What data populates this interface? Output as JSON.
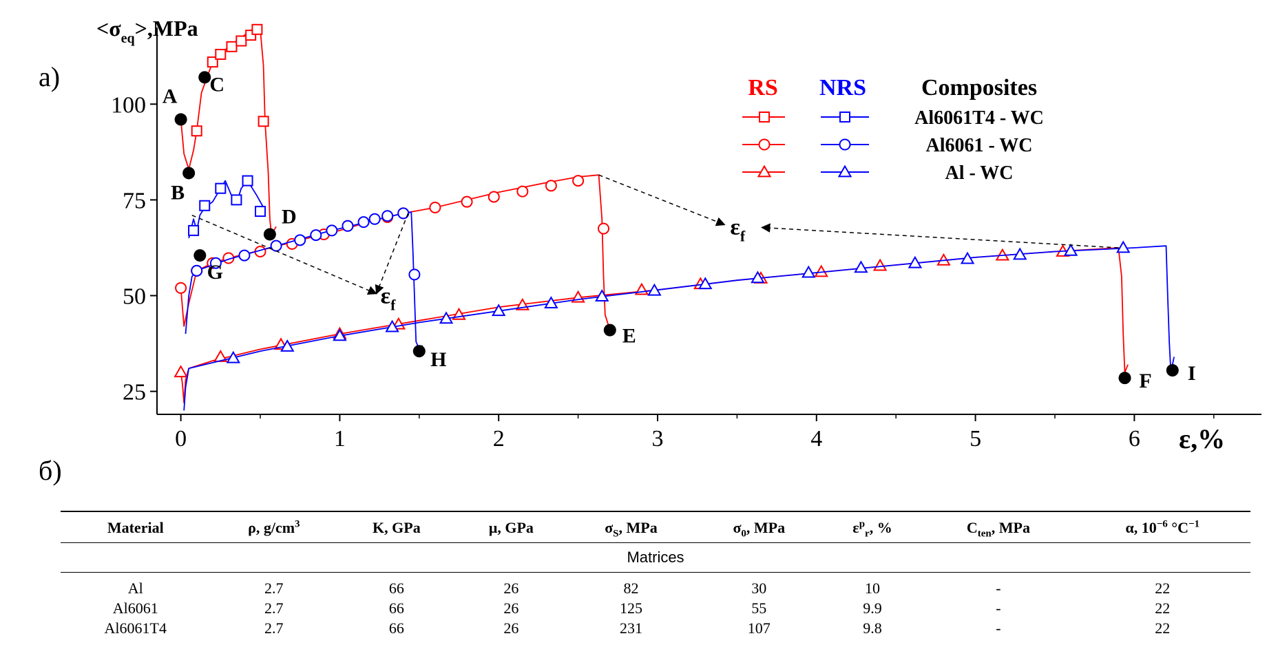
{
  "panel_labels": {
    "a": "а)",
    "b": "б)"
  },
  "chart_data": {
    "type": "line",
    "ylabel_parts": {
      "pre": "<σ",
      "sub": "eq",
      "post": ">,MPa"
    },
    "xlabel": "ε,%",
    "xlim": [
      -0.15,
      6.8
    ],
    "ylim": [
      19,
      120
    ],
    "xticks": [
      0,
      1,
      2,
      3,
      4,
      5,
      6
    ],
    "yticks": [
      25,
      50,
      75,
      100
    ],
    "colors": {
      "RS": "#ff0000",
      "NRS": "#0000ff"
    },
    "legend": {
      "header": {
        "rs": "RS",
        "nrs": "NRS",
        "title": "Composites"
      },
      "entries": [
        {
          "label": "Al6061T4 - WC",
          "marker": "square"
        },
        {
          "label": "Al6061 - WC",
          "marker": "circle"
        },
        {
          "label": "Al - WC",
          "marker": "triangle"
        }
      ]
    },
    "series": [
      {
        "name": "RS",
        "group": "RS",
        "color": "#ff0000",
        "marker": "square",
        "points": [
          [
            0.0,
            96
          ],
          [
            0.02,
            87
          ],
          [
            0.05,
            83
          ],
          [
            0.08,
            88
          ],
          [
            0.1,
            93
          ],
          [
            0.13,
            103
          ],
          [
            0.2,
            111
          ],
          [
            0.25,
            113
          ],
          [
            0.3,
            115
          ],
          [
            0.35,
            116.5
          ],
          [
            0.4,
            118
          ],
          [
            0.45,
            119.5
          ],
          [
            0.5,
            119.5
          ],
          [
            0.52,
            110
          ],
          [
            0.53,
            95.5
          ],
          [
            0.55,
            82
          ],
          [
            0.56,
            70
          ],
          [
            0.57,
            66
          ],
          [
            0.6,
            68
          ]
        ],
        "markers": [
          [
            0.1,
            93
          ],
          [
            0.2,
            111
          ],
          [
            0.25,
            113
          ],
          [
            0.32,
            115
          ],
          [
            0.38,
            116.5
          ],
          [
            0.44,
            118
          ],
          [
            0.48,
            119.5
          ],
          [
            0.52,
            95.5
          ]
        ]
      },
      {
        "name": "RS",
        "group": "RS",
        "color": "#ff0000",
        "marker": "circle",
        "points": [
          [
            0.0,
            52
          ],
          [
            0.02,
            42
          ],
          [
            0.05,
            48
          ],
          [
            0.1,
            56.5
          ],
          [
            0.2,
            58.5
          ],
          [
            0.3,
            59.8
          ],
          [
            0.5,
            61.8
          ],
          [
            0.8,
            65
          ],
          [
            1.0,
            67
          ],
          [
            1.2,
            69.5
          ],
          [
            1.4,
            71.5
          ],
          [
            1.6,
            73
          ],
          [
            2.0,
            77
          ],
          [
            2.3,
            79.5
          ],
          [
            2.5,
            81
          ],
          [
            2.63,
            81.5
          ],
          [
            2.65,
            70
          ],
          [
            2.66,
            55
          ],
          [
            2.67,
            45
          ],
          [
            2.7,
            41
          ],
          [
            2.72,
            42
          ]
        ],
        "markers": [
          [
            0.0,
            52
          ],
          [
            0.1,
            56.5
          ],
          [
            0.2,
            58.5
          ],
          [
            0.3,
            59.8
          ],
          [
            0.5,
            61.5
          ],
          [
            0.7,
            63.5
          ],
          [
            0.9,
            66
          ],
          [
            1.05,
            68.2
          ],
          [
            1.3,
            70.5
          ],
          [
            1.4,
            71.5
          ],
          [
            1.6,
            73
          ],
          [
            1.8,
            74.5
          ],
          [
            1.97,
            75.8
          ],
          [
            2.15,
            77.2
          ],
          [
            2.33,
            78.7
          ],
          [
            2.5,
            80
          ],
          [
            2.66,
            67.5
          ]
        ]
      },
      {
        "name": "RS",
        "group": "RS",
        "color": "#ff0000",
        "marker": "triangle",
        "points": [
          [
            0.0,
            30
          ],
          [
            0.01,
            27
          ],
          [
            0.02,
            22
          ],
          [
            0.03,
            28
          ],
          [
            0.05,
            31
          ],
          [
            0.2,
            33
          ],
          [
            0.5,
            36
          ],
          [
            1.0,
            40
          ],
          [
            1.5,
            43.5
          ],
          [
            2.0,
            47
          ],
          [
            2.5,
            49.5
          ],
          [
            3.0,
            51.5
          ],
          [
            3.5,
            54
          ],
          [
            4.0,
            56
          ],
          [
            4.5,
            58
          ],
          [
            5.0,
            60
          ],
          [
            5.5,
            61.5
          ],
          [
            5.9,
            62.5
          ],
          [
            5.92,
            55
          ],
          [
            5.93,
            40
          ],
          [
            5.94,
            30
          ],
          [
            5.96,
            32
          ]
        ],
        "markers": [
          [
            0.0,
            30
          ],
          [
            0.25,
            34
          ],
          [
            0.63,
            37.2
          ],
          [
            1.0,
            40
          ],
          [
            1.37,
            42.5
          ],
          [
            1.75,
            45
          ],
          [
            2.15,
            47.5
          ],
          [
            2.5,
            49.5
          ],
          [
            2.9,
            51.5
          ],
          [
            3.27,
            53
          ],
          [
            3.65,
            54.5
          ],
          [
            4.03,
            56.2
          ],
          [
            4.4,
            57.8
          ],
          [
            4.8,
            59.2
          ],
          [
            5.17,
            60.5
          ],
          [
            5.55,
            61.5
          ]
        ]
      },
      {
        "name": "NRS",
        "group": "NRS",
        "color": "#0000ff",
        "marker": "square",
        "points": [
          [
            0.05,
            65
          ],
          [
            0.08,
            70
          ],
          [
            0.1,
            67
          ],
          [
            0.12,
            71
          ],
          [
            0.15,
            73
          ],
          [
            0.2,
            74.5
          ],
          [
            0.25,
            78
          ],
          [
            0.28,
            80
          ],
          [
            0.32,
            76
          ],
          [
            0.35,
            74
          ],
          [
            0.38,
            78
          ],
          [
            0.42,
            80
          ],
          [
            0.45,
            78
          ],
          [
            0.48,
            76
          ],
          [
            0.52,
            73
          ],
          [
            0.53,
            72
          ]
        ],
        "markers": [
          [
            0.08,
            67
          ],
          [
            0.15,
            73.5
          ],
          [
            0.25,
            78
          ],
          [
            0.35,
            75
          ],
          [
            0.42,
            80
          ],
          [
            0.5,
            72
          ]
        ]
      },
      {
        "name": "NRS",
        "group": "NRS",
        "color": "#0000ff",
        "marker": "circle",
        "points": [
          [
            0.03,
            40
          ],
          [
            0.05,
            50
          ],
          [
            0.07,
            55
          ],
          [
            0.1,
            56.5
          ],
          [
            0.3,
            59.5
          ],
          [
            0.6,
            63
          ],
          [
            0.9,
            66.5
          ],
          [
            1.2,
            69.5
          ],
          [
            1.4,
            71.5
          ],
          [
            1.45,
            71.8
          ],
          [
            1.46,
            62
          ],
          [
            1.47,
            50
          ],
          [
            1.48,
            38
          ],
          [
            1.5,
            36
          ],
          [
            1.52,
            37
          ]
        ],
        "markers": [
          [
            0.1,
            56.5
          ],
          [
            0.22,
            58.5
          ],
          [
            0.4,
            60.5
          ],
          [
            0.6,
            63
          ],
          [
            0.75,
            64.5
          ],
          [
            0.85,
            65.8
          ],
          [
            0.95,
            67
          ],
          [
            1.05,
            68.2
          ],
          [
            1.15,
            69.2
          ],
          [
            1.22,
            70
          ],
          [
            1.3,
            70.8
          ],
          [
            1.4,
            71.5
          ],
          [
            1.47,
            55.5
          ]
        ]
      },
      {
        "name": "NRS",
        "group": "NRS",
        "color": "#0000ff",
        "marker": "triangle",
        "points": [
          [
            0.02,
            20
          ],
          [
            0.03,
            26
          ],
          [
            0.05,
            31
          ],
          [
            0.2,
            32.5
          ],
          [
            0.5,
            35.5
          ],
          [
            1.0,
            39.5
          ],
          [
            1.5,
            43
          ],
          [
            2.0,
            46
          ],
          [
            2.5,
            49
          ],
          [
            3.0,
            51.5
          ],
          [
            3.5,
            54
          ],
          [
            4.0,
            56
          ],
          [
            4.5,
            58
          ],
          [
            5.0,
            60
          ],
          [
            5.5,
            61.5
          ],
          [
            6.0,
            62.5
          ],
          [
            6.2,
            63
          ],
          [
            6.21,
            50
          ],
          [
            6.22,
            38
          ],
          [
            6.23,
            30
          ],
          [
            6.25,
            34
          ]
        ],
        "markers": [
          [
            0.33,
            33.7
          ],
          [
            0.67,
            36.7
          ],
          [
            1.0,
            39.5
          ],
          [
            1.33,
            41.8
          ],
          [
            1.67,
            44
          ],
          [
            2.0,
            46
          ],
          [
            2.33,
            48
          ],
          [
            2.65,
            49.8
          ],
          [
            2.98,
            51.3
          ],
          [
            3.3,
            53
          ],
          [
            3.63,
            54.6
          ],
          [
            3.95,
            56
          ],
          [
            4.28,
            57.3
          ],
          [
            4.62,
            58.5
          ],
          [
            4.95,
            59.6
          ],
          [
            5.28,
            60.7
          ],
          [
            5.6,
            61.7
          ],
          [
            5.93,
            62.5
          ]
        ]
      }
    ],
    "point_labels": [
      {
        "label": "A",
        "x": 0.0,
        "y": 96,
        "dx": -16,
        "dy": -24
      },
      {
        "label": "B",
        "x": 0.05,
        "y": 82,
        "dx": -16,
        "dy": 38
      },
      {
        "label": "C",
        "x": 0.15,
        "y": 107,
        "dx": 18,
        "dy": 20
      },
      {
        "label": "D",
        "x": 0.56,
        "y": 66,
        "dx": 28,
        "dy": -16
      },
      {
        "label": "G",
        "x": 0.12,
        "y": 60.5,
        "dx": 22,
        "dy": 34
      },
      {
        "label": "H",
        "x": 1.5,
        "y": 35.5,
        "dx": 28,
        "dy": 22
      },
      {
        "label": "E",
        "x": 2.7,
        "y": 41,
        "dx": 28,
        "dy": 18
      },
      {
        "label": "F",
        "x": 5.94,
        "y": 28.5,
        "dx": 30,
        "dy": 14
      },
      {
        "label": "I",
        "x": 6.24,
        "y": 30.5,
        "dx": 28,
        "dy": 14
      }
    ],
    "annotations": [
      {
        "text": "ε",
        "sub": "f",
        "x": 1.3,
        "y": 48,
        "arrows_from": [
          [
            0.07,
            71
          ],
          [
            1.43,
            71.5
          ]
        ]
      },
      {
        "text": "ε",
        "sub": "f",
        "x": 3.5,
        "y": 66,
        "arrows_from": [
          [
            2.63,
            81.5
          ]
        ],
        "arrow_to": [
          5.9,
          62.5
        ]
      }
    ]
  },
  "table": {
    "headers": [
      {
        "pre": "Material"
      },
      {
        "pre": "ρ, g/cm",
        "sup": "3"
      },
      {
        "pre": "K, GPa"
      },
      {
        "pre": "μ, GPa"
      },
      {
        "pre": "σ",
        "sub": "S",
        "post": ", MPa"
      },
      {
        "pre": "σ",
        "sub": "0",
        "post": ", MPa"
      },
      {
        "pre": "ε",
        "sup": "p",
        "sub": "r",
        "post": ", %"
      },
      {
        "pre": "C",
        "sub": "ten",
        "post": ", MPa"
      },
      {
        "pre": "α, 10",
        "sup": "−6",
        "post": " °C",
        "sup2": "−1"
      }
    ],
    "group_label": "Matrices",
    "rows": [
      [
        "Al",
        "2.7",
        "66",
        "26",
        "82",
        "30",
        "10",
        "-",
        "22"
      ],
      [
        "Al6061",
        "2.7",
        "66",
        "26",
        "125",
        "55",
        "9.9",
        "-",
        "22"
      ],
      [
        "Al6061T4",
        "2.7",
        "66",
        "26",
        "231",
        "107",
        "9.8",
        "-",
        "22"
      ]
    ]
  }
}
